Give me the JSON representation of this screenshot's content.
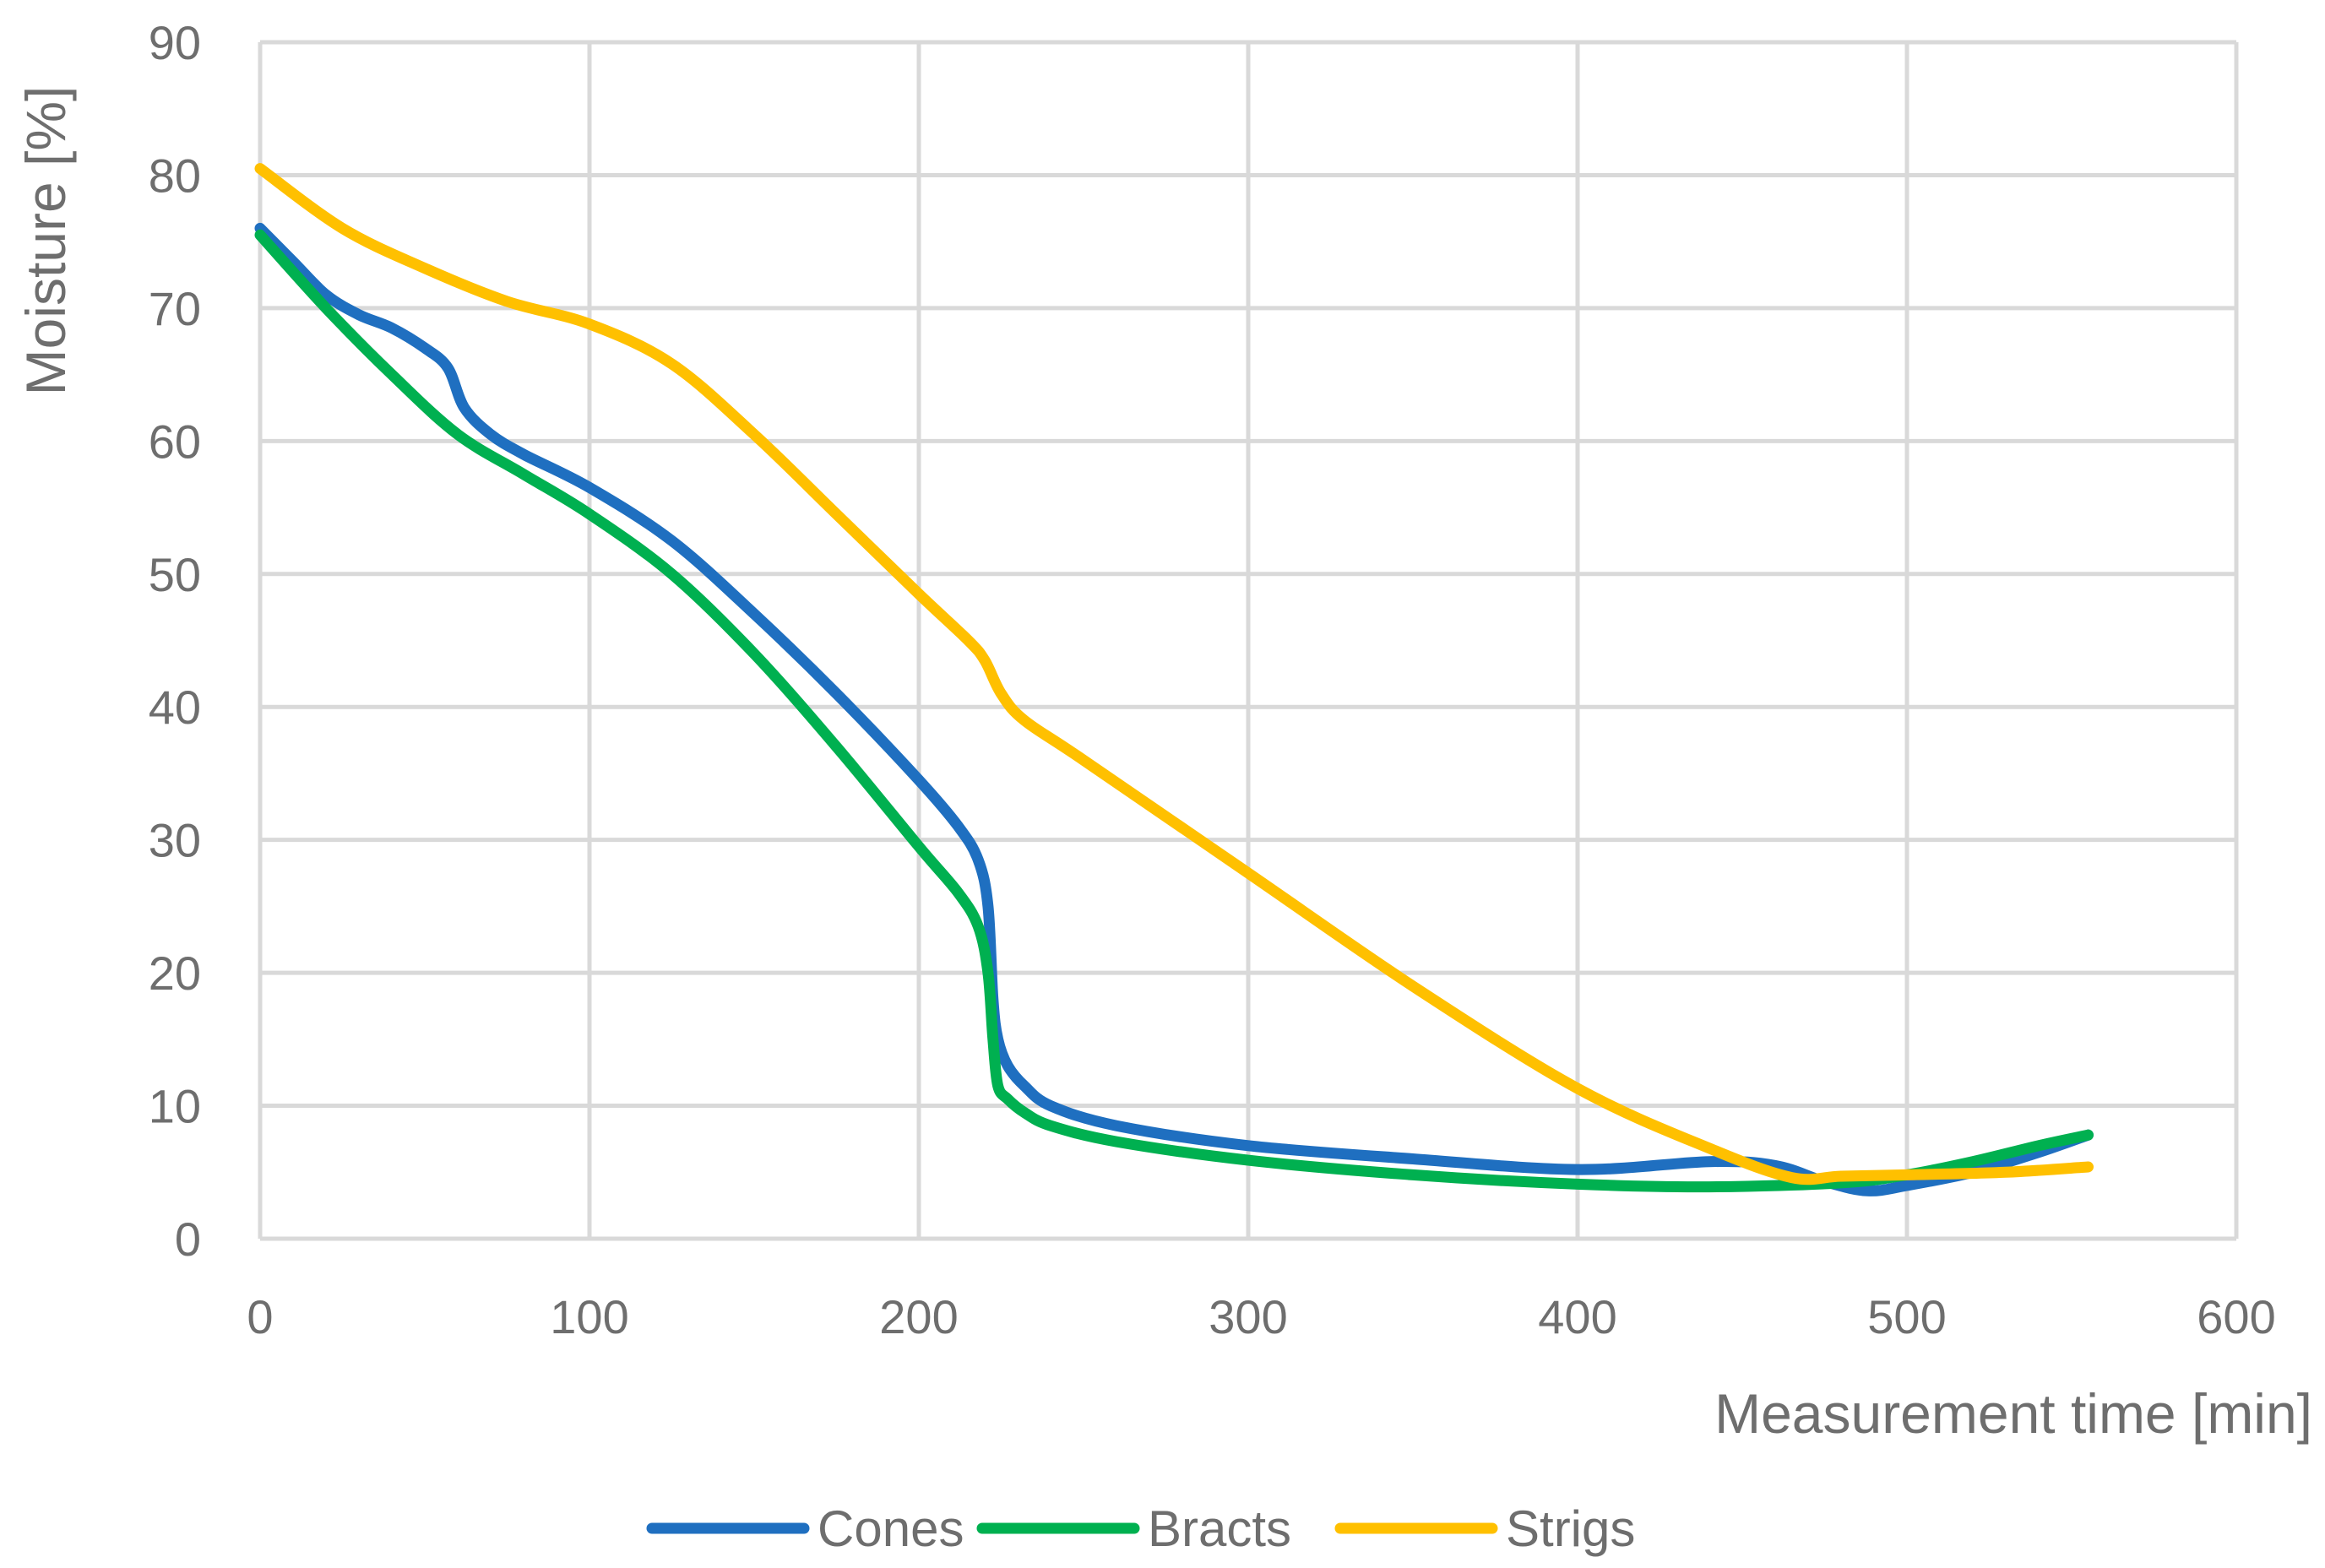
{
  "chart_data": {
    "type": "line",
    "title": "",
    "xlabel": "Measurement time [min]",
    "ylabel": "Moisture [%]",
    "xlim": [
      0,
      600
    ],
    "ylim": [
      0,
      90
    ],
    "xticks": [
      0,
      100,
      200,
      300,
      400,
      500,
      600
    ],
    "yticks": [
      0,
      10,
      20,
      30,
      40,
      50,
      60,
      70,
      80,
      90
    ],
    "grid": true,
    "legend_position": "bottom",
    "series": [
      {
        "name": "Cones",
        "color": "#1f6fc0",
        "x": [
          0,
          10,
          20,
          30,
          40,
          50,
          57,
          62,
          70,
          80,
          100,
          125,
          150,
          175,
          200,
          212,
          218,
          221,
          222.5,
          224,
          227,
          232,
          240,
          260,
          300,
          350,
          400,
          440,
          460,
          475,
          488,
          500,
          520,
          540,
          555
        ],
        "y": [
          76,
          73.5,
          71,
          69.5,
          68.5,
          67,
          65.5,
          62.5,
          60.5,
          59,
          56.5,
          52.5,
          47,
          41,
          34.5,
          31,
          28.5,
          25,
          18,
          15,
          13,
          11.5,
          10,
          8.5,
          7,
          6,
          5.2,
          5.8,
          5.5,
          4.3,
          3.6,
          4,
          5,
          6.5,
          7.8
        ]
      },
      {
        "name": "Bracts",
        "color": "#00b050",
        "x": [
          0,
          20,
          40,
          60,
          80,
          100,
          125,
          150,
          175,
          200,
          212,
          218,
          221,
          222.5,
          224,
          227,
          232,
          240,
          260,
          300,
          350,
          400,
          440,
          480,
          500,
          520,
          540,
          555
        ],
        "y": [
          75.5,
          70,
          65,
          60.5,
          57.5,
          54.5,
          50,
          44,
          37,
          29.5,
          26,
          23.5,
          20,
          15,
          11.5,
          10.5,
          9.5,
          8.5,
          7.3,
          5.9,
          4.8,
          4.1,
          3.9,
          4.2,
          4.8,
          5.8,
          7,
          7.8
        ]
      },
      {
        "name": "Strigs",
        "color": "#ffc000",
        "x": [
          0,
          25,
          50,
          75,
          100,
          125,
          150,
          175,
          200,
          215,
          220,
          225,
          232,
          250,
          300,
          350,
          400,
          440,
          465,
          480,
          500,
          530,
          555
        ],
        "y": [
          80.5,
          76,
          73,
          70.5,
          68.8,
          65.8,
          60.5,
          54.5,
          48.5,
          45,
          43.5,
          41,
          39,
          36,
          27.5,
          19,
          11.3,
          6.8,
          4.6,
          4.7,
          4.8,
          5,
          5.4
        ]
      }
    ]
  }
}
